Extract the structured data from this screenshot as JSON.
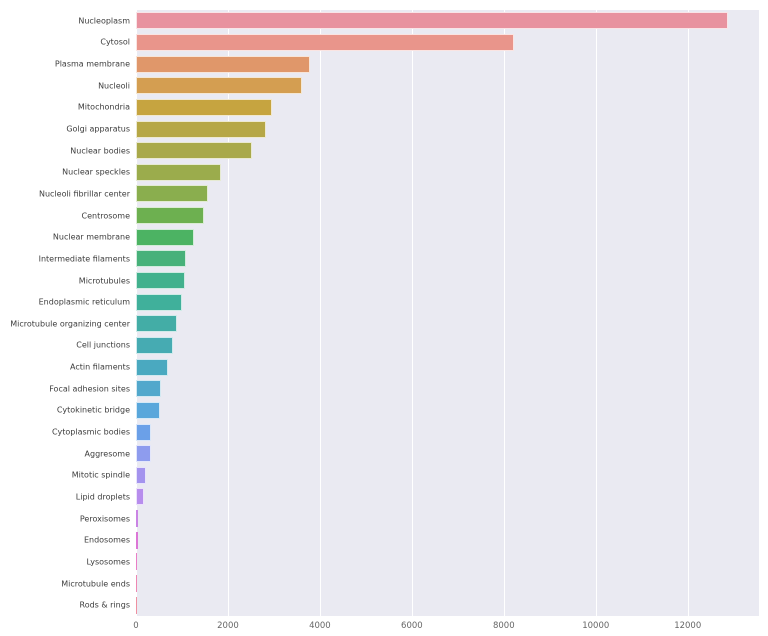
{
  "chart_data": {
    "type": "bar",
    "orientation": "horizontal",
    "title": "",
    "xlabel": "",
    "ylabel": "",
    "categories": [
      "Nucleoplasm",
      "Cytosol",
      "Plasma membrane",
      "Nucleoli",
      "Mitochondria",
      "Golgi apparatus",
      "Nuclear bodies",
      "Nuclear speckles",
      "Nucleoli fibrillar center",
      "Centrosome",
      "Nuclear membrane",
      "Intermediate filaments",
      "Microtubules",
      "Endoplasmic reticulum",
      "Microtubule organizing center",
      "Cell junctions",
      "Actin filaments",
      "Focal adhesion sites",
      "Cytokinetic bridge",
      "Cytoplasmic bodies",
      "Aggresome",
      "Mitotic spindle",
      "Lipid droplets",
      "Peroxisomes",
      "Endosomes",
      "Lysosomes",
      "Microtubule ends",
      "Rods & rings"
    ],
    "values": [
      12885,
      8228,
      3777,
      3621,
      2965,
      2822,
      2513,
      1858,
      1561,
      1482,
      1254,
      1093,
      1066,
      1008,
      902,
      802,
      688,
      537,
      530,
      328,
      322,
      210,
      172,
      53,
      45,
      28,
      21,
      11
    ],
    "bar_colors": [
      "#e8929f",
      "#e9958b",
      "#e0976a",
      "#d49e51",
      "#c6a440",
      "#b6a746",
      "#a9a94a",
      "#9bac4c",
      "#8aae4e",
      "#6db050",
      "#4cb363",
      "#47b17a",
      "#42b18d",
      "#40b09b",
      "#43ada6",
      "#46abb2",
      "#4aa9c0",
      "#52a8cc",
      "#59a7db",
      "#6ba0e8",
      "#8e9cee",
      "#a493ee",
      "#b78ded",
      "#ca84e4",
      "#dc76d6",
      "#e97ec6",
      "#ee87b2",
      "#ef90a1"
    ],
    "xlim": [
      0,
      13550
    ],
    "x_ticks": [
      0,
      2000,
      4000,
      6000,
      8000,
      10000,
      12000
    ],
    "x_tick_labels": [
      "0",
      "2000",
      "4000",
      "6000",
      "8000",
      "10000",
      "12000"
    ],
    "legend": "none",
    "grid": "vertical",
    "colors": {
      "figure_bg": "#ffffff",
      "plot_bg": "#eaeaf2",
      "grid": "#ffffff",
      "tick_label": "#666666",
      "category_label": "#3d3d3d",
      "bar_edge": "rgba(255,255,255,0.75)"
    }
  }
}
